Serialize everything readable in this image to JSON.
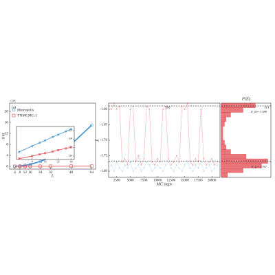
{
  "chart_data": [
    {
      "type": "line",
      "annotation": "(a)",
      "multiplier": "×10⁴",
      "xlabel": "L",
      "ylabel": "τint",
      "legend": "upper left",
      "line_style": "solid",
      "x": [
        4,
        8,
        12,
        16,
        24,
        32,
        48,
        64
      ],
      "series": [
        {
          "name": "Metropolis",
          "color": "#3a8fd0",
          "marker": "circle",
          "values": [
            0.03,
            0.15,
            0.37,
            0.7,
            1.8,
            3.3,
            8,
            15
          ]
        },
        {
          "name": "TNMCMC-1",
          "color": "#e0474c",
          "marker": "square",
          "values": [
            0.005,
            0.01,
            0.016,
            0.022,
            0.035,
            0.05,
            0.08,
            0.11
          ]
        }
      ],
      "xlim": [
        0,
        67
      ],
      "xticks": [
        4,
        8,
        12,
        16,
        24,
        32,
        48,
        64
      ],
      "ylim": [
        -1,
        23
      ],
      "yticks": [
        0,
        4,
        8,
        12,
        16,
        20
      ]
    },
    {
      "type": "line",
      "xlog": true,
      "ylog": true,
      "ytick_side": "right",
      "line_style": "solid",
      "x": [
        4,
        8,
        12,
        16,
        24,
        32,
        48,
        64
      ],
      "series": [
        {
          "color": "#3a8fd0",
          "marker": "circle",
          "values": [
            300,
            1500,
            3700,
            7000,
            18000,
            33000,
            80000,
            150000
          ]
        },
        {
          "color": "#e0474c",
          "marker": "square",
          "values": [
            50,
            100,
            160,
            220,
            350,
            500,
            800,
            1100
          ]
        }
      ],
      "xlim": [
        3.5,
        75
      ],
      "xticks": [
        8,
        16,
        32,
        64
      ],
      "ylim": [
        40,
        300000
      ],
      "yticks": [
        {
          "value": 100,
          "label": "10²"
        },
        {
          "value": 1000,
          "label": "10³"
        },
        {
          "value": 10000,
          "label": "10⁴"
        },
        {
          "value": 100000,
          "label": "10⁵"
        }
      ]
    },
    {
      "type": "line",
      "annotation": "(b)",
      "xlabel": "MC steps",
      "ylabel": "E",
      "line_style": "dotted",
      "x": [
        1000,
        1500,
        2000,
        2500,
        3000,
        3500,
        4000,
        4500,
        5000,
        5500,
        6000,
        6500,
        7000,
        7500,
        8000,
        8500,
        9000,
        9500,
        10000,
        10500,
        11000,
        11500,
        12000,
        12500,
        13000,
        13500,
        14000,
        14500,
        15000,
        15500,
        16000,
        16500,
        17000,
        17500,
        18000,
        18500,
        19000,
        19500,
        20000,
        20500,
        21000
      ],
      "series": [
        {
          "color": "#7fb6e6",
          "marker": "dot",
          "values": [
            -1.79,
            -1.78,
            -1.8,
            -1.77,
            -1.79,
            -1.8,
            -1.78,
            -1.79,
            -1.77,
            -1.8,
            -1.79,
            -1.78,
            -1.8,
            -1.79,
            -1.77,
            -1.78,
            -1.8,
            -1.79,
            -1.78,
            -1.79,
            -1.8,
            -1.78,
            -1.77,
            -1.79,
            -1.8,
            -1.78,
            -1.79,
            -1.8,
            -1.78,
            -1.77,
            -1.79,
            -1.8,
            -1.78,
            -1.79,
            -1.77,
            -1.8,
            -1.79,
            -1.78,
            -1.8,
            -1.79,
            -1.78
          ]
        },
        {
          "color": "#e0474c",
          "marker": "dot",
          "values": [
            -1.59,
            -1.6,
            -1.58,
            -1.6,
            -1.59,
            -1.77,
            -1.76,
            -1.78,
            -1.6,
            -1.59,
            -1.77,
            -1.75,
            -1.78,
            -1.76,
            -1.59,
            -1.6,
            -1.77,
            -1.78,
            -1.76,
            -1.77,
            -1.6,
            -1.59,
            -1.76,
            -1.78,
            -1.77,
            -1.75,
            -1.77,
            -1.59,
            -1.6,
            -1.58,
            -1.77,
            -1.78,
            -1.76,
            -1.77,
            -1.6,
            -1.76,
            -1.78,
            -1.77,
            -1.76,
            -1.78,
            -1.77
          ]
        }
      ],
      "reference_lines": [
        -1.589,
        -1.767
      ],
      "xlim": [
        1000,
        21500
      ],
      "xticks": [
        2500,
        5000,
        7500,
        10000,
        12500,
        15000,
        17500,
        20000
      ],
      "ylim": [
        -1.82,
        -1.58
      ],
      "yticks": [
        {
          "value": -1.6,
          "label": "-1.60"
        },
        -1.65,
        {
          "value": -1.7,
          "label": "-1.70"
        },
        -1.75,
        {
          "value": -1.8,
          "label": "-1.80"
        }
      ]
    },
    {
      "type": "histogram",
      "orientation": "horizontal",
      "title": "P(E)",
      "annotation": "(c)",
      "color": "#e0474c",
      "bins": [
        -1.82,
        -1.805,
        -1.79,
        -1.775,
        -1.76,
        -1.745,
        -1.73,
        -1.715,
        -1.7,
        -1.685,
        -1.67,
        -1.655,
        -1.64,
        -1.625,
        -1.61,
        -1.595,
        -1.58
      ],
      "counts": [
        4,
        14,
        26,
        30,
        16,
        6,
        3,
        2,
        1,
        1,
        1,
        2,
        3,
        6,
        14,
        22
      ],
      "labels": [
        "E_H=-1.589",
        "E_L=-1.767"
      ],
      "xlim": [
        0,
        32
      ],
      "ylim": [
        -1.82,
        -1.58
      ]
    }
  ]
}
